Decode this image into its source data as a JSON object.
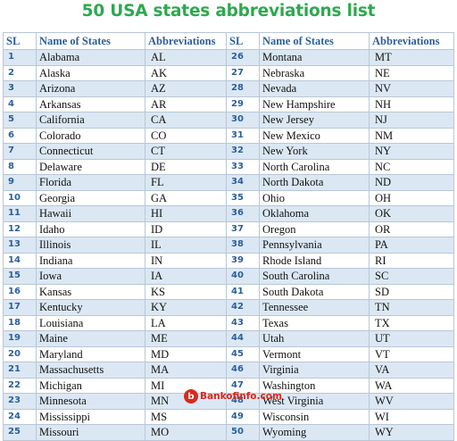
{
  "title": "50 USA states abbreviations list",
  "headers": {
    "sl": "SL",
    "name": "Name of States",
    "abbr": "Abbreviations"
  },
  "colors": {
    "title": "#2fa84f",
    "header_text": "#2b5f9a",
    "row_alt": "#dbe8f4",
    "logo": "#d62b1f"
  },
  "rows": [
    {
      "l": {
        "sl": "1",
        "name": "Alabama",
        "abbr": "AL"
      },
      "r": {
        "sl": "26",
        "name": "Montana",
        "abbr": "MT"
      }
    },
    {
      "l": {
        "sl": "2",
        "name": "Alaska",
        "abbr": "AK"
      },
      "r": {
        "sl": "27",
        "name": "Nebraska",
        "abbr": "NE"
      }
    },
    {
      "l": {
        "sl": "3",
        "name": "Arizona",
        "abbr": "AZ"
      },
      "r": {
        "sl": "28",
        "name": "Nevada",
        "abbr": "NV"
      }
    },
    {
      "l": {
        "sl": "4",
        "name": "Arkansas",
        "abbr": "AR"
      },
      "r": {
        "sl": "29",
        "name": "New Hampshire",
        "abbr": "NH"
      }
    },
    {
      "l": {
        "sl": "5",
        "name": "California",
        "abbr": "CA"
      },
      "r": {
        "sl": "30",
        "name": "New Jersey",
        "abbr": "NJ"
      }
    },
    {
      "l": {
        "sl": "6",
        "name": "Colorado",
        "abbr": "CO"
      },
      "r": {
        "sl": "31",
        "name": "New Mexico",
        "abbr": "NM"
      }
    },
    {
      "l": {
        "sl": "7",
        "name": "Connecticut",
        "abbr": "CT"
      },
      "r": {
        "sl": "32",
        "name": "New York",
        "abbr": "NY"
      }
    },
    {
      "l": {
        "sl": "8",
        "name": "Delaware",
        "abbr": "DE"
      },
      "r": {
        "sl": "33",
        "name": "North Carolina",
        "abbr": "NC"
      }
    },
    {
      "l": {
        "sl": "9",
        "name": "Florida",
        "abbr": "FL"
      },
      "r": {
        "sl": "34",
        "name": "North Dakota",
        "abbr": "ND"
      }
    },
    {
      "l": {
        "sl": "10",
        "name": "Georgia",
        "abbr": "GA"
      },
      "r": {
        "sl": "35",
        "name": "Ohio",
        "abbr": "OH"
      }
    },
    {
      "l": {
        "sl": "11",
        "name": "Hawaii",
        "abbr": "HI"
      },
      "r": {
        "sl": "36",
        "name": "Oklahoma",
        "abbr": "OK"
      }
    },
    {
      "l": {
        "sl": "12",
        "name": "Idaho",
        "abbr": "ID"
      },
      "r": {
        "sl": "37",
        "name": "Oregon",
        "abbr": "OR"
      }
    },
    {
      "l": {
        "sl": "13",
        "name": "Illinois",
        "abbr": "IL"
      },
      "r": {
        "sl": "38",
        "name": "Pennsylvania",
        "abbr": "PA"
      }
    },
    {
      "l": {
        "sl": "14",
        "name": "Indiana",
        "abbr": "IN"
      },
      "r": {
        "sl": "39",
        "name": "Rhode Island",
        "abbr": "RI"
      }
    },
    {
      "l": {
        "sl": "15",
        "name": "Iowa",
        "abbr": "IA"
      },
      "r": {
        "sl": "40",
        "name": "South Carolina",
        "abbr": "SC"
      }
    },
    {
      "l": {
        "sl": "16",
        "name": "Kansas",
        "abbr": "KS"
      },
      "r": {
        "sl": "41",
        "name": "South Dakota",
        "abbr": "SD"
      }
    },
    {
      "l": {
        "sl": "17",
        "name": "Kentucky",
        "abbr": "KY"
      },
      "r": {
        "sl": "42",
        "name": "Tennessee",
        "abbr": "TN"
      }
    },
    {
      "l": {
        "sl": "18",
        "name": "Louisiana",
        "abbr": "LA"
      },
      "r": {
        "sl": "43",
        "name": "Texas",
        "abbr": "TX"
      }
    },
    {
      "l": {
        "sl": "19",
        "name": "Maine",
        "abbr": "ME"
      },
      "r": {
        "sl": "44",
        "name": "Utah",
        "abbr": "UT"
      }
    },
    {
      "l": {
        "sl": "20",
        "name": "Maryland",
        "abbr": "MD"
      },
      "r": {
        "sl": "45",
        "name": "Vermont",
        "abbr": "VT"
      }
    },
    {
      "l": {
        "sl": "21",
        "name": "Massachusetts",
        "abbr": "MA"
      },
      "r": {
        "sl": "46",
        "name": "Virginia",
        "abbr": "VA"
      }
    },
    {
      "l": {
        "sl": "22",
        "name": "Michigan",
        "abbr": "MI"
      },
      "r": {
        "sl": "47",
        "name": "Washington",
        "abbr": "WA"
      }
    },
    {
      "l": {
        "sl": "23",
        "name": "Minnesota",
        "abbr": "MN"
      },
      "r": {
        "sl": "48",
        "name": "West Virginia",
        "abbr": "WV"
      }
    },
    {
      "l": {
        "sl": "24",
        "name": "Mississippi",
        "abbr": "MS"
      },
      "r": {
        "sl": "49",
        "name": "Wisconsin",
        "abbr": "WI"
      }
    },
    {
      "l": {
        "sl": "25",
        "name": "Missouri",
        "abbr": "MO"
      },
      "r": {
        "sl": "50",
        "name": "Wyoming",
        "abbr": "WY"
      }
    }
  ],
  "footer": {
    "logo_letter": "b",
    "site": "Bankofinfo.com",
    "icon": "bankofinfo-logo-icon"
  }
}
